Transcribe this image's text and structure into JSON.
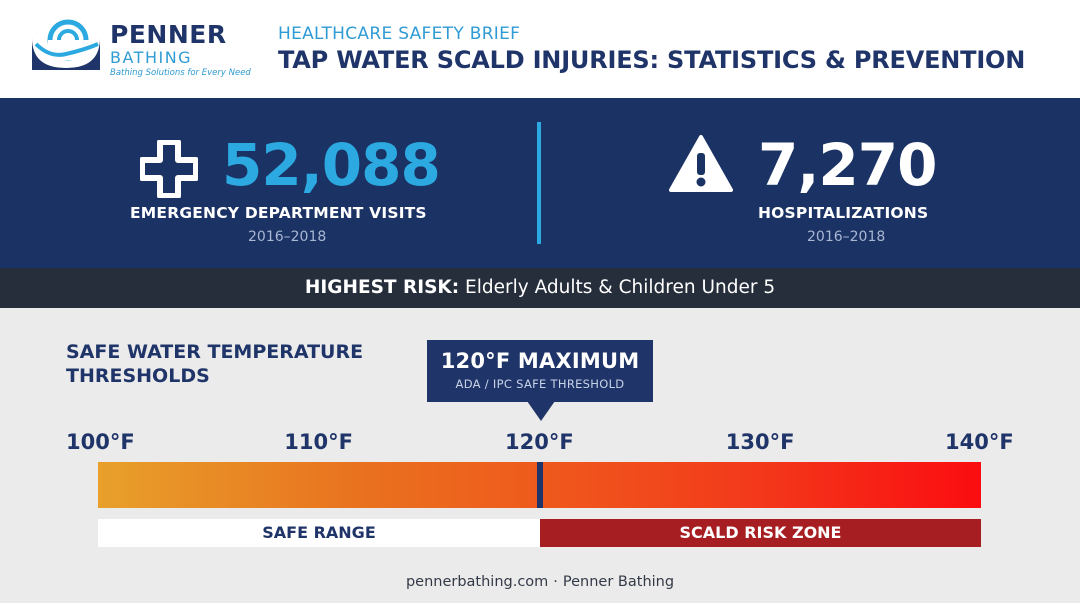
{
  "brand": {
    "name": "PENNER",
    "sub": "BATHING",
    "tagline": "Bathing Solutions for Every Need",
    "colors": {
      "navy": "#1f3468",
      "blue": "#2ba9e0"
    }
  },
  "header": {
    "label": "HEALTHCARE SAFETY BRIEF",
    "title": "TAP WATER SCALD INJURIES: STATISTICS & PREVENTION"
  },
  "stats": [
    {
      "icon": "medical-cross-icon",
      "value": "52,088",
      "label": "EMERGENCY DEPARTMENT VISITS",
      "years": "2016–2018"
    },
    {
      "icon": "warning-triangle-icon",
      "value": "7,270",
      "label": "HOSPITALIZATIONS",
      "years": "2016–2018"
    }
  ],
  "risk": {
    "prefix": "HIGHEST RISK:",
    "text": "Elderly Adults & Children Under 5"
  },
  "thresholds": {
    "title": "SAFE WATER TEMPERATURE THRESHOLDS",
    "callout_title": "120°F MAXIMUM",
    "callout_sub": "ADA / IPC SAFE THRESHOLD",
    "ticks": [
      "100°F",
      "110°F",
      "120°F",
      "130°F",
      "140°F"
    ],
    "scale_min": 100,
    "scale_max": 140,
    "marker_value": 120,
    "safe_label": "SAFE RANGE",
    "risk_label": "SCALD RISK ZONE",
    "colors": {
      "risk_zone": "#a61e22",
      "bar_start": "#e8a02a",
      "bar_end": "#fb0c10"
    }
  },
  "footer": {
    "site": "pennerbathing.com",
    "sep": "·",
    "name": "Penner Bathing"
  }
}
